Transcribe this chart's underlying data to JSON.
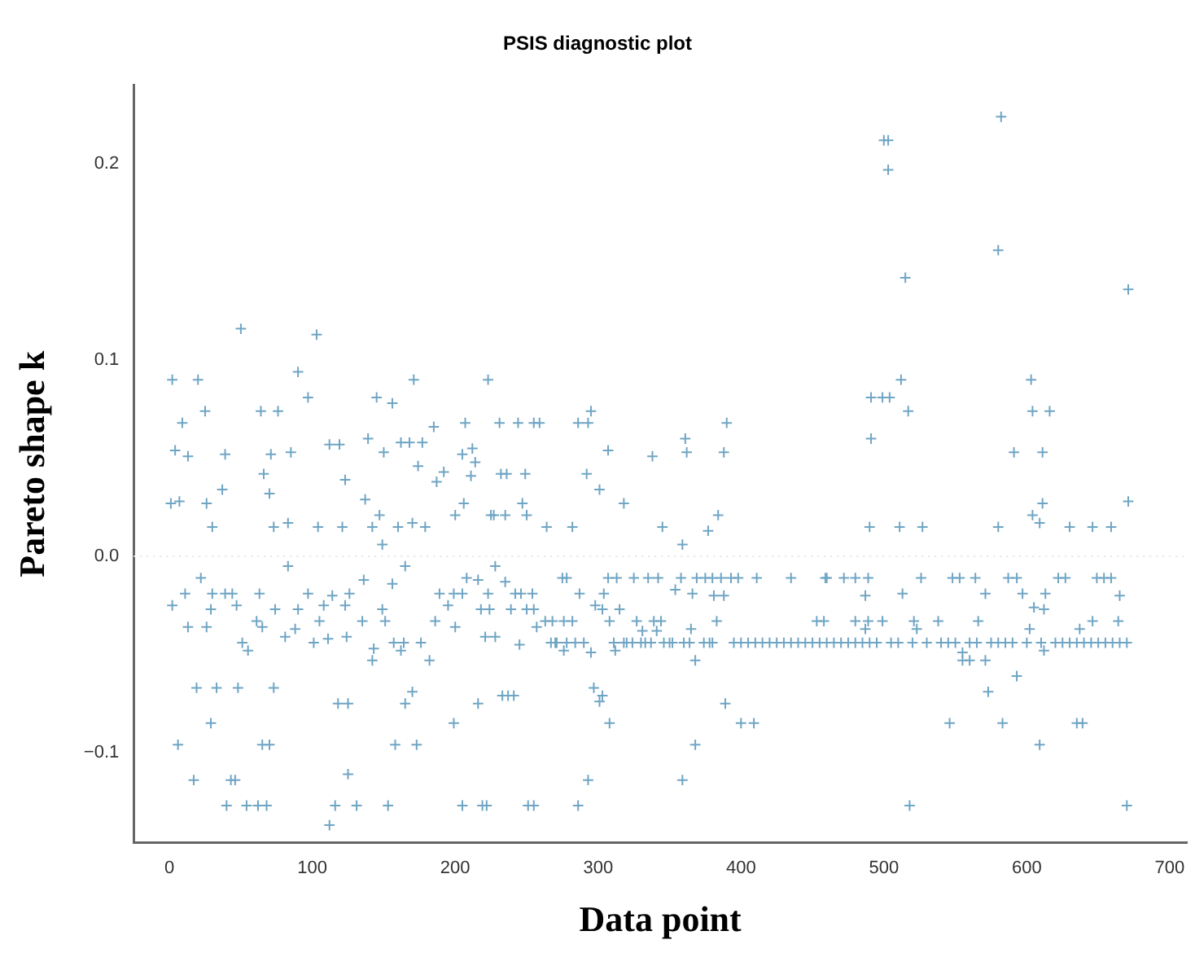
{
  "chart_data": {
    "type": "scatter",
    "title": "PSIS diagnostic plot",
    "xlabel": "Data point",
    "ylabel": "Pareto shape k",
    "xlim": [
      -25,
      712
    ],
    "ylim": [
      -0.146,
      0.24
    ],
    "xticks": [
      0,
      100,
      200,
      300,
      400,
      500,
      600,
      700
    ],
    "yticks": [
      {
        "value": -0.1,
        "label": "−0.1"
      },
      {
        "value": 0,
        "label": "0.0"
      },
      {
        "value": 0.1,
        "label": "0.1"
      },
      {
        "value": 0.2,
        "label": "0.2"
      }
    ],
    "grid": false,
    "legend": false,
    "marker": "cross",
    "ref_lines": [
      {
        "axis": "y",
        "value": 0,
        "color": "#e6e6e6",
        "line_style": "dotted"
      }
    ],
    "series": [
      {
        "color": "#6fa5c4",
        "x": [
          2,
          20,
          50,
          103,
          90,
          97,
          25,
          9,
          4,
          13,
          39,
          64,
          76,
          71,
          85,
          66,
          70,
          37,
          1,
          7,
          26,
          30,
          73,
          83,
          104,
          121,
          112,
          119,
          123,
          137,
          139,
          145,
          150,
          156,
          162,
          171,
          168,
          174,
          177,
          185,
          187,
          192,
          179,
          170,
          160,
          147,
          149,
          142,
          207,
          205,
          211,
          212,
          214,
          223,
          227,
          200,
          206,
          2,
          11,
          22,
          13,
          26,
          30,
          29,
          39,
          44,
          47,
          51,
          55,
          63,
          61,
          65,
          74,
          83,
          81,
          88,
          90,
          97,
          101,
          105,
          108,
          111,
          114,
          123,
          124,
          126,
          136,
          135,
          142,
          143,
          149,
          151,
          156,
          157,
          165,
          164,
          162,
          176,
          182,
          186,
          189,
          195,
          199,
          200,
          205,
          208,
          216,
          218,
          221,
          223,
          19,
          33,
          48,
          73,
          118,
          125,
          165,
          170,
          216,
          29,
          199,
          6,
          65,
          70,
          158,
          173,
          17,
          43,
          46,
          125,
          40,
          54,
          62,
          68,
          116,
          131,
          153,
          112,
          205,
          219,
          222,
          231,
          244,
          255,
          259,
          286,
          293,
          295,
          232,
          236,
          249,
          292,
          301,
          307,
          318,
          247,
          225,
          235,
          250,
          264,
          282,
          338,
          345,
          361,
          362,
          359,
          377,
          384,
          388,
          390,
          228,
          224,
          228,
          235,
          239,
          242,
          246,
          250,
          255,
          254,
          245,
          257,
          263,
          268,
          267,
          271,
          275,
          278,
          276,
          282,
          276,
          284,
          287,
          295,
          298,
          304,
          303,
          307,
          308,
          311,
          312,
          313,
          315,
          318,
          325,
          327,
          330,
          331,
          335,
          337,
          339,
          342,
          344,
          346,
          341,
          354,
          358,
          364,
          365,
          366,
          368,
          369,
          374,
          375,
          380,
          381,
          383,
          386,
          388,
          393,
          398,
          411,
          435,
          459,
          453,
          233,
          237,
          241,
          297,
          303,
          301,
          308,
          389,
          400,
          409,
          368,
          359,
          293,
          251,
          255,
          286,
          270,
          278,
          290,
          320,
          324,
          333,
          350,
          352,
          360,
          378,
          380,
          582,
          500,
          503,
          503,
          580,
          515,
          671,
          512,
          491,
          499,
          504,
          517,
          491,
          603,
          604,
          616,
          591,
          611,
          611,
          604,
          609,
          671,
          490,
          511,
          527,
          580,
          630,
          646,
          659,
          460,
          472,
          480,
          489,
          487,
          513,
          526,
          548,
          553,
          564,
          571,
          587,
          593,
          597,
          605,
          613,
          612,
          622,
          627,
          649,
          654,
          659,
          665,
          458,
          480,
          489,
          499,
          487,
          521,
          523,
          538,
          566,
          602,
          637,
          646,
          664,
          555,
          555,
          560,
          571,
          612,
          593,
          573,
          546,
          583,
          635,
          639,
          609,
          518,
          670,
          395,
          400,
          405,
          410,
          415,
          420,
          425,
          430,
          435,
          440,
          445,
          450,
          455,
          460,
          465,
          470,
          475,
          480,
          485,
          490,
          495,
          505,
          510,
          520,
          530,
          540,
          545,
          550,
          560,
          565,
          575,
          580,
          585,
          590,
          600,
          610,
          620,
          625,
          630,
          635,
          640,
          645,
          650,
          655,
          660,
          665,
          670
        ],
        "values": [
          0.09,
          0.09,
          0.116,
          0.113,
          0.094,
          0.081,
          0.074,
          0.068,
          0.054,
          0.051,
          0.052,
          0.074,
          0.074,
          0.052,
          0.053,
          0.042,
          0.032,
          0.034,
          0.027,
          0.028,
          0.027,
          0.015,
          0.015,
          0.017,
          0.015,
          0.015,
          0.057,
          0.057,
          0.039,
          0.029,
          0.06,
          0.081,
          0.053,
          0.078,
          0.058,
          0.09,
          0.058,
          0.046,
          0.058,
          0.066,
          0.038,
          0.043,
          0.015,
          0.017,
          0.015,
          0.021,
          0.006,
          0.015,
          0.068,
          0.052,
          0.041,
          0.055,
          0.048,
          0.09,
          0.021,
          0.021,
          0.027,
          -0.025,
          -0.019,
          -0.011,
          -0.036,
          -0.036,
          -0.019,
          -0.027,
          -0.019,
          -0.019,
          -0.025,
          -0.044,
          -0.048,
          -0.019,
          -0.033,
          -0.036,
          -0.027,
          -0.005,
          -0.041,
          -0.037,
          -0.027,
          -0.019,
          -0.044,
          -0.033,
          -0.025,
          -0.042,
          -0.02,
          -0.025,
          -0.041,
          -0.019,
          -0.012,
          -0.033,
          -0.053,
          -0.047,
          -0.027,
          -0.033,
          -0.014,
          -0.044,
          -0.005,
          -0.044,
          -0.048,
          -0.044,
          -0.053,
          -0.033,
          -0.019,
          -0.025,
          -0.019,
          -0.036,
          -0.019,
          -0.011,
          -0.012,
          -0.027,
          -0.041,
          -0.019,
          -0.067,
          -0.067,
          -0.067,
          -0.067,
          -0.075,
          -0.075,
          -0.075,
          -0.069,
          -0.075,
          -0.085,
          -0.085,
          -0.096,
          -0.096,
          -0.096,
          -0.096,
          -0.096,
          -0.114,
          -0.114,
          -0.114,
          -0.111,
          -0.127,
          -0.127,
          -0.127,
          -0.127,
          -0.127,
          -0.127,
          -0.127,
          -0.137,
          -0.127,
          -0.127,
          -0.127,
          0.068,
          0.068,
          0.068,
          0.068,
          0.068,
          0.068,
          0.074,
          0.042,
          0.042,
          0.042,
          0.042,
          0.034,
          0.054,
          0.027,
          0.027,
          0.021,
          0.021,
          0.021,
          0.015,
          0.015,
          0.051,
          0.015,
          0.06,
          0.053,
          0.006,
          0.013,
          0.021,
          0.053,
          0.068,
          -0.005,
          -0.027,
          -0.041,
          -0.013,
          -0.027,
          -0.019,
          -0.019,
          -0.027,
          -0.027,
          -0.019,
          -0.045,
          -0.036,
          -0.033,
          -0.033,
          -0.044,
          -0.044,
          -0.011,
          -0.011,
          -0.033,
          -0.033,
          -0.048,
          -0.044,
          -0.019,
          -0.049,
          -0.025,
          -0.019,
          -0.027,
          -0.011,
          -0.033,
          -0.044,
          -0.048,
          -0.011,
          -0.027,
          -0.044,
          -0.011,
          -0.033,
          -0.044,
          -0.038,
          -0.011,
          -0.044,
          -0.033,
          -0.011,
          -0.033,
          -0.044,
          -0.038,
          -0.017,
          -0.011,
          -0.044,
          -0.037,
          -0.019,
          -0.053,
          -0.011,
          -0.044,
          -0.011,
          -0.011,
          -0.02,
          -0.033,
          -0.011,
          -0.02,
          -0.011,
          -0.011,
          -0.011,
          -0.011,
          -0.011,
          -0.033,
          -0.071,
          -0.071,
          -0.071,
          -0.067,
          -0.071,
          -0.074,
          -0.085,
          -0.075,
          -0.085,
          -0.085,
          -0.096,
          -0.114,
          -0.114,
          -0.127,
          -0.127,
          -0.127,
          -0.044,
          -0.044,
          -0.044,
          -0.044,
          -0.044,
          -0.044,
          -0.044,
          -0.044,
          -0.044,
          -0.044,
          -0.044,
          0.224,
          0.212,
          0.212,
          0.197,
          0.156,
          0.142,
          0.136,
          0.09,
          0.081,
          0.081,
          0.081,
          0.074,
          0.06,
          0.09,
          0.074,
          0.074,
          0.053,
          0.053,
          0.027,
          0.021,
          0.017,
          0.028,
          0.015,
          0.015,
          0.015,
          0.015,
          0.015,
          0.015,
          0.015,
          -0.011,
          -0.011,
          -0.011,
          -0.011,
          -0.02,
          -0.019,
          -0.011,
          -0.011,
          -0.011,
          -0.011,
          -0.019,
          -0.011,
          -0.011,
          -0.019,
          -0.026,
          -0.019,
          -0.027,
          -0.011,
          -0.011,
          -0.011,
          -0.011,
          -0.011,
          -0.02,
          -0.033,
          -0.033,
          -0.033,
          -0.033,
          -0.037,
          -0.033,
          -0.037,
          -0.033,
          -0.033,
          -0.037,
          -0.037,
          -0.033,
          -0.033,
          -0.049,
          -0.053,
          -0.053,
          -0.053,
          -0.048,
          -0.061,
          -0.069,
          -0.085,
          -0.085,
          -0.085,
          -0.085,
          -0.096,
          -0.127,
          -0.127,
          -0.044,
          -0.044,
          -0.044,
          -0.044,
          -0.044,
          -0.044,
          -0.044,
          -0.044,
          -0.044,
          -0.044,
          -0.044,
          -0.044,
          -0.044,
          -0.044,
          -0.044,
          -0.044,
          -0.044,
          -0.044,
          -0.044,
          -0.044,
          -0.044,
          -0.044,
          -0.044,
          -0.044,
          -0.044,
          -0.044,
          -0.044,
          -0.044,
          -0.044,
          -0.044,
          -0.044,
          -0.044,
          -0.044,
          -0.044,
          -0.044,
          -0.044,
          -0.044,
          -0.044,
          -0.044,
          -0.044,
          -0.044,
          -0.044,
          -0.044,
          -0.044,
          -0.044,
          -0.044,
          -0.044
        ]
      }
    ]
  }
}
